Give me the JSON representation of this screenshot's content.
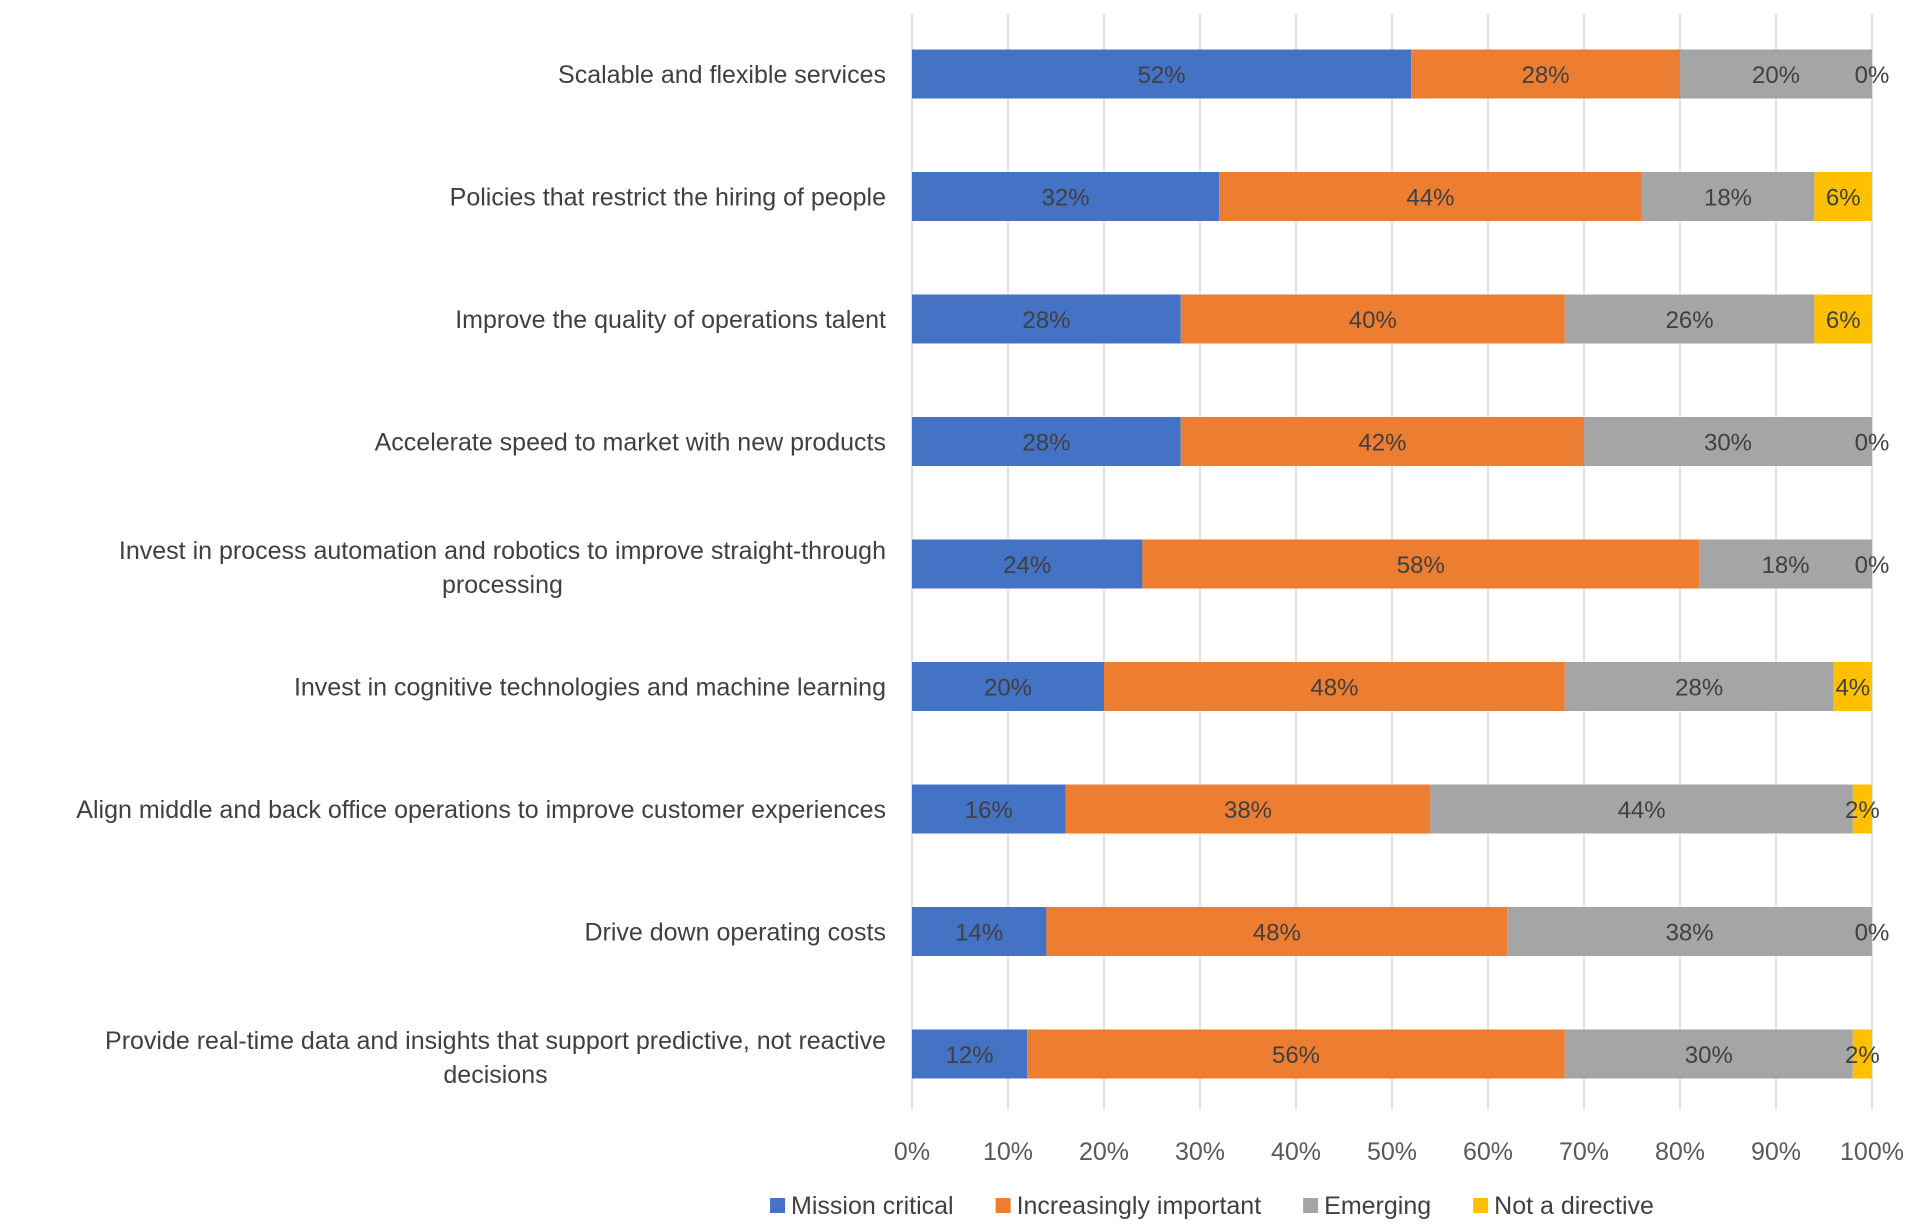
{
  "chart_data": {
    "type": "bar",
    "orientation": "horizontal",
    "stacked": "percent",
    "title": "",
    "xlabel": "",
    "ylabel": "",
    "xlim": [
      0,
      100
    ],
    "x_ticks": [
      "0%",
      "10%",
      "20%",
      "30%",
      "40%",
      "50%",
      "60%",
      "70%",
      "80%",
      "90%",
      "100%"
    ],
    "grid": "vertical",
    "legend_position": "bottom",
    "categories": [
      [
        "Scalable and flexible services"
      ],
      [
        "Policies that restrict the hiring of people"
      ],
      [
        "Improve the quality of operations talent"
      ],
      [
        "Accelerate speed to market with new products"
      ],
      [
        "Invest in process automation and robotics to improve straight-through",
        "processing"
      ],
      [
        "Invest in cognitive technologies and machine learning"
      ],
      [
        "Align middle and back office operations to improve customer experiences"
      ],
      [
        "Drive down operating costs"
      ],
      [
        "Provide real-time data and insights that support predictive, not reactive",
        "decisions"
      ]
    ],
    "series": [
      {
        "name": "Mission critical",
        "color": "#4472C4",
        "values": [
          52,
          32,
          28,
          28,
          24,
          20,
          16,
          14,
          12
        ]
      },
      {
        "name": "Increasingly important",
        "color": "#ED7D31",
        "values": [
          28,
          44,
          40,
          42,
          58,
          48,
          38,
          48,
          56
        ]
      },
      {
        "name": "Emerging",
        "color": "#A5A5A5",
        "values": [
          20,
          18,
          26,
          30,
          18,
          28,
          44,
          38,
          30
        ]
      },
      {
        "name": "Not a directive",
        "color": "#FFC000",
        "values": [
          0,
          6,
          6,
          0,
          0,
          4,
          2,
          0,
          2
        ]
      }
    ],
    "value_format": "{v}%"
  }
}
